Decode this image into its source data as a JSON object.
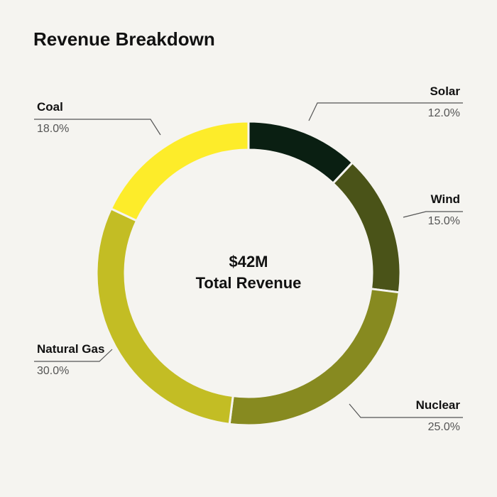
{
  "chart_data": {
    "type": "pie",
    "title": "Revenue Breakdown",
    "center_value": "$42M",
    "center_label": "Total Revenue",
    "slices": [
      {
        "label": "Solar",
        "value": 12.0,
        "display": "12.0%",
        "color": "#0a1f12"
      },
      {
        "label": "Wind",
        "value": 15.0,
        "display": "15.0%",
        "color": "#4a5318"
      },
      {
        "label": "Nuclear",
        "value": 25.0,
        "display": "25.0%",
        "color": "#878a20"
      },
      {
        "label": "Natural Gas",
        "value": 30.0,
        "display": "30.0%",
        "color": "#c3bd24"
      },
      {
        "label": "Coal",
        "value": 18.0,
        "display": "18.0%",
        "color": "#fdec2a"
      }
    ]
  }
}
